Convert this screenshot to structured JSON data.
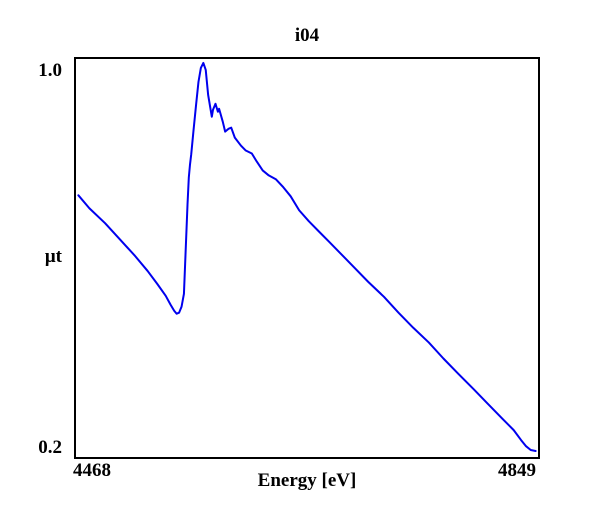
{
  "window": {
    "background": "#ffffff"
  },
  "chart_data": {
    "type": "line",
    "title": "i04",
    "xlabel": "Energy [eV]",
    "ylabel": "μt",
    "xlim": [
      4468,
      4849
    ],
    "ylim": [
      0.2,
      1.0
    ],
    "x_ticks": [
      "4468",
      "4849"
    ],
    "y_ticks": [
      "1.0",
      "0.2"
    ],
    "grid": false,
    "legend_position": "none",
    "line_color": "#0000ee",
    "frame_color": "#000000",
    "series": [
      {
        "name": "i04",
        "points": [
          [
            4470,
            0.726
          ],
          [
            4479,
            0.7
          ],
          [
            4492,
            0.67
          ],
          [
            4504,
            0.638
          ],
          [
            4516,
            0.606
          ],
          [
            4527,
            0.574
          ],
          [
            4535,
            0.548
          ],
          [
            4542,
            0.524
          ],
          [
            4546,
            0.506
          ],
          [
            4549,
            0.494
          ],
          [
            4551,
            0.488
          ],
          [
            4553,
            0.49
          ],
          [
            4555,
            0.502
          ],
          [
            4557,
            0.528
          ],
          [
            4558,
            0.588
          ],
          [
            4559,
            0.648
          ],
          [
            4560,
            0.708
          ],
          [
            4561,
            0.762
          ],
          [
            4562,
            0.788
          ],
          [
            4562.5,
            0.798
          ],
          [
            4563,
            0.808
          ],
          [
            4565,
            0.858
          ],
          [
            4567,
            0.908
          ],
          [
            4569,
            0.954
          ],
          [
            4571,
            0.982
          ],
          [
            4573,
            0.992
          ],
          [
            4575,
            0.978
          ],
          [
            4577,
            0.928
          ],
          [
            4580,
            0.884
          ],
          [
            4581,
            0.898
          ],
          [
            4583,
            0.91
          ],
          [
            4585,
            0.894
          ],
          [
            4586,
            0.9
          ],
          [
            4589,
            0.874
          ],
          [
            4591,
            0.854
          ],
          [
            4594,
            0.86
          ],
          [
            4596,
            0.862
          ],
          [
            4599,
            0.842
          ],
          [
            4604,
            0.826
          ],
          [
            4608,
            0.816
          ],
          [
            4613,
            0.81
          ],
          [
            4617,
            0.794
          ],
          [
            4622,
            0.776
          ],
          [
            4627,
            0.766
          ],
          [
            4633,
            0.758
          ],
          [
            4639,
            0.742
          ],
          [
            4645,
            0.724
          ],
          [
            4652,
            0.696
          ],
          [
            4660,
            0.674
          ],
          [
            4668,
            0.654
          ],
          [
            4677,
            0.632
          ],
          [
            4685,
            0.612
          ],
          [
            4697,
            0.582
          ],
          [
            4709,
            0.552
          ],
          [
            4722,
            0.522
          ],
          [
            4734,
            0.49
          ],
          [
            4746,
            0.46
          ],
          [
            4759,
            0.43
          ],
          [
            4771,
            0.398
          ],
          [
            4783,
            0.368
          ],
          [
            4796,
            0.336
          ],
          [
            4808,
            0.306
          ],
          [
            4820,
            0.276
          ],
          [
            4829,
            0.254
          ],
          [
            4835,
            0.234
          ],
          [
            4839,
            0.222
          ],
          [
            4843,
            0.214
          ],
          [
            4847,
            0.212
          ]
        ]
      }
    ]
  }
}
